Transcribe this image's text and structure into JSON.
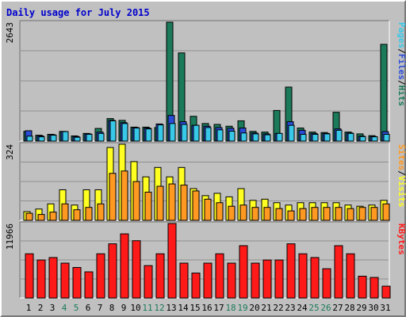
{
  "title": "Daily usage for July 2015",
  "colors": {
    "background": "#c0c0c0",
    "plot_background": "#c0c0c0",
    "grid": "#909090",
    "title": "#0000cc",
    "hits": "#1b7a5a",
    "files": "#2a4bd7",
    "pages": "#38c8e8",
    "visits": "#ffff22",
    "sites": "#ff9922",
    "kbytes": "#ff1a1a",
    "weekend_label": "#1b7a5a",
    "weekday_label": "#000000"
  },
  "chart_data": {
    "type": "bar",
    "x_labels": [
      "1",
      "2",
      "3",
      "4",
      "5",
      "6",
      "7",
      "8",
      "9",
      "10",
      "11",
      "12",
      "13",
      "14",
      "15",
      "16",
      "17",
      "18",
      "19",
      "20",
      "21",
      "22",
      "23",
      "24",
      "25",
      "26",
      "27",
      "28",
      "29",
      "30",
      "31"
    ],
    "weekend_days": [
      "4",
      "5",
      "11",
      "12",
      "18",
      "19",
      "25",
      "26"
    ],
    "panels": [
      {
        "name": "top",
        "ymax_label": "2643",
        "ymax": 2643,
        "legend": [
          "Pages",
          "/",
          "Files",
          "/",
          "Hits"
        ],
        "legend_colors": [
          "#38c8e8",
          "#000000",
          "#2a4bd7",
          "#000000",
          "#1b7a5a"
        ],
        "series": [
          {
            "key": "hits",
            "values": [
              215,
              130,
              150,
              215,
              115,
              170,
              280,
              500,
              460,
              310,
              310,
              300,
              2643,
              1960,
              550,
              390,
              370,
              330,
              450,
              215,
              200,
              680,
              1200,
              290,
              200,
              190,
              640,
              200,
              160,
              120,
              2150
            ]
          },
          {
            "key": "files",
            "values": [
              230,
              115,
              140,
              210,
              100,
              160,
              200,
              460,
              410,
              300,
              290,
              380,
              570,
              430,
              350,
              330,
              300,
              285,
              290,
              180,
              160,
              170,
              430,
              240,
              170,
              170,
              270,
              180,
              110,
              100,
              210
            ]
          },
          {
            "key": "pages",
            "values": [
              110,
              95,
              130,
              210,
              85,
              150,
              170,
              450,
              390,
              290,
              270,
              360,
              390,
              370,
              350,
              300,
              250,
              220,
              180,
              160,
              140,
              170,
              350,
              150,
              150,
              160,
              240,
              170,
              100,
              95,
              150
            ]
          }
        ]
      },
      {
        "name": "middle",
        "ymax_label": "324",
        "ymax": 324,
        "legend": [
          "Sites",
          "/",
          "Visits"
        ],
        "legend_colors": [
          "#ff9922",
          "#000000",
          "#ffff22"
        ],
        "series": [
          {
            "key": "visits",
            "values": [
              37,
              48,
              70,
              130,
              65,
              130,
              130,
              310,
              324,
              250,
              185,
              225,
              185,
              225,
              135,
              105,
              115,
              100,
              135,
              85,
              90,
              75,
              65,
              75,
              75,
              75,
              75,
              65,
              60,
              65,
              85
            ]
          },
          {
            "key": "sites",
            "values": [
              30,
              25,
              35,
              70,
              45,
              55,
              70,
              200,
              210,
              165,
              120,
              145,
              155,
              150,
              125,
              90,
              75,
              60,
              65,
              55,
              55,
              50,
              40,
              50,
              55,
              55,
              55,
              50,
              55,
              55,
              70
            ]
          }
        ]
      },
      {
        "name": "bottom",
        "ymax_label": "11966",
        "ymax": 11966,
        "legend": [
          "KBytes"
        ],
        "legend_colors": [
          "#ff1a1a"
        ],
        "series": [
          {
            "key": "kbytes",
            "values": [
              7100,
              6100,
              6500,
              5600,
              4900,
              4200,
              7100,
              8700,
              10300,
              9200,
              5200,
              7100,
              11966,
              5600,
              4000,
              5600,
              7100,
              5600,
              8400,
              5600,
              6100,
              6100,
              8700,
              7100,
              6500,
              4700,
              8400,
              7100,
              3500,
              3300,
              1900
            ]
          }
        ]
      }
    ]
  }
}
